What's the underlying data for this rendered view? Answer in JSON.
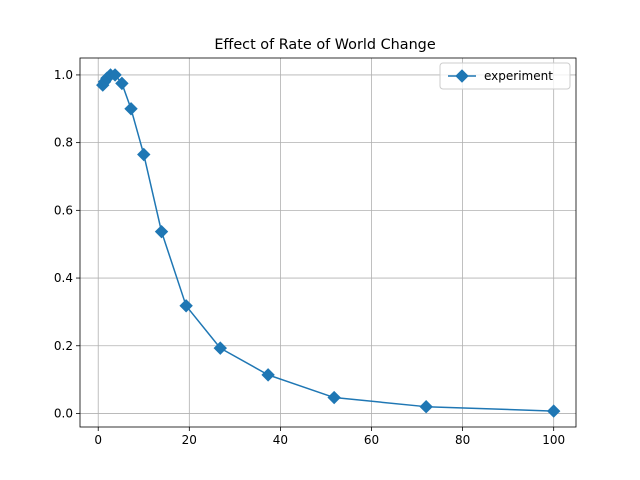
{
  "chart_data": {
    "type": "line",
    "title": "Effect of Rate of World Change",
    "xlabel": "",
    "ylabel": "",
    "xlim": [
      -4.0,
      104.9
    ],
    "ylim": [
      -0.04,
      1.05
    ],
    "x_ticks": [
      0,
      20,
      40,
      60,
      80,
      100
    ],
    "y_ticks": [
      0.0,
      0.2,
      0.4,
      0.6,
      0.8,
      1.0
    ],
    "x_tick_labels": [
      "0",
      "20",
      "40",
      "60",
      "80",
      "100"
    ],
    "y_tick_labels": [
      "0.0",
      "0.2",
      "0.4",
      "0.6",
      "0.8",
      "1.0"
    ],
    "grid": true,
    "legend_position": "top-right",
    "series": [
      {
        "name": "experiment",
        "color": "#1f77b4",
        "marker": "diamond",
        "x": [
          1.0,
          1.4,
          1.9,
          2.7,
          3.7,
          5.2,
          7.2,
          10.0,
          13.9,
          19.3,
          26.8,
          37.3,
          51.8,
          72.0,
          100.0
        ],
        "y": [
          0.97,
          0.98,
          0.99,
          1.0,
          1.0,
          0.975,
          0.9,
          0.765,
          0.537,
          0.318,
          0.193,
          0.114,
          0.047,
          0.02,
          0.007
        ]
      }
    ]
  }
}
